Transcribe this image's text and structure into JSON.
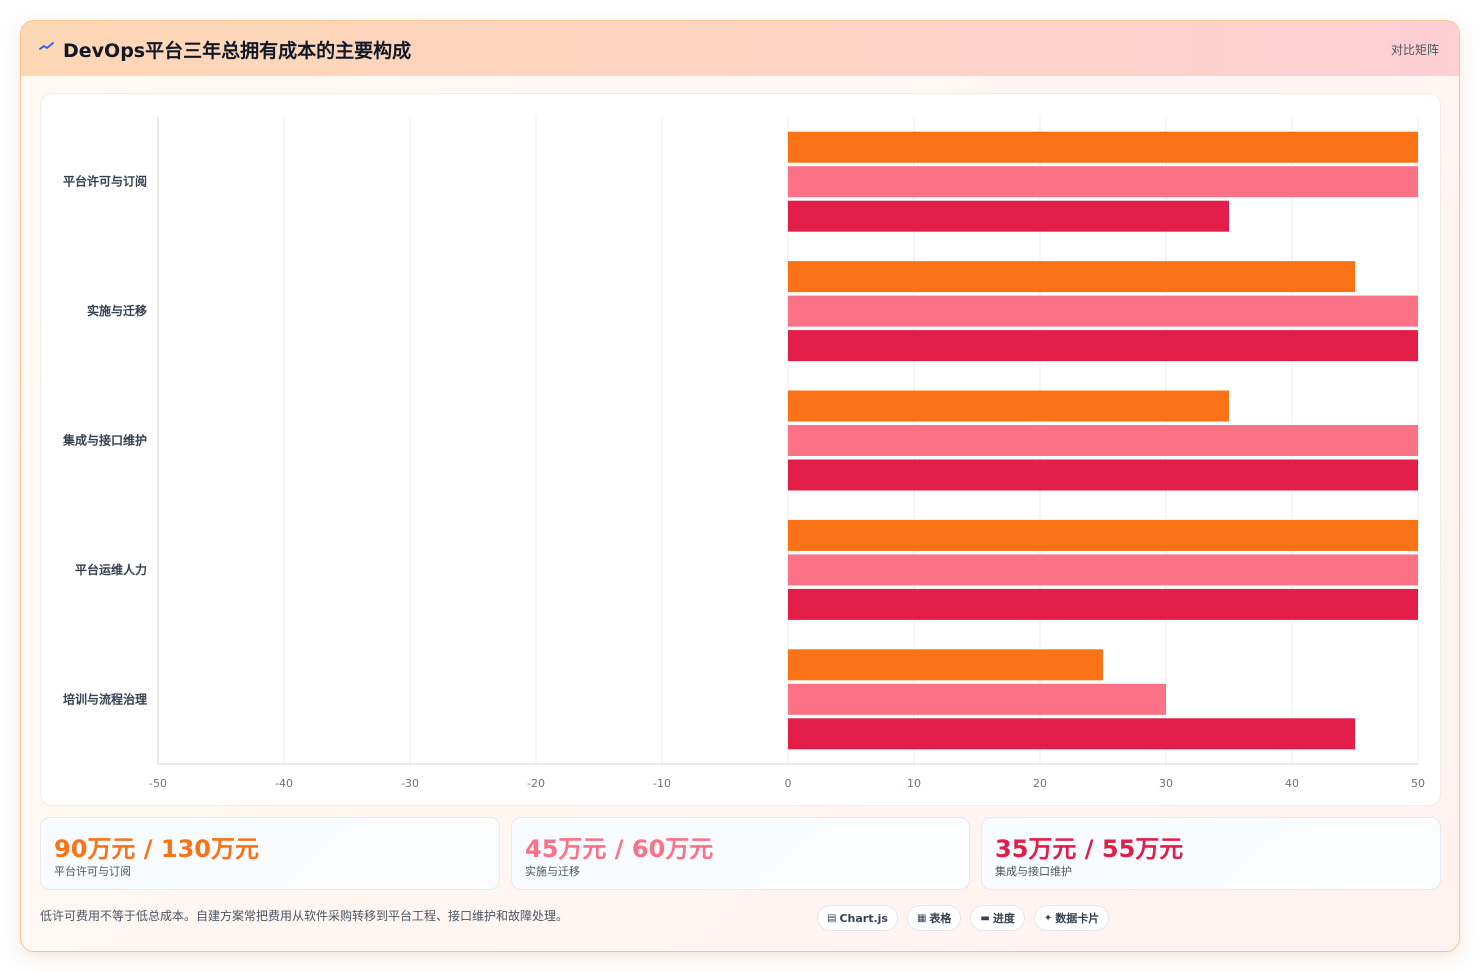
{
  "header": {
    "title": "DevOps平台三年总拥有成本的主要构成",
    "tag": "对比矩阵",
    "icon": "sparkline-icon"
  },
  "colors": {
    "orange": "#f97316",
    "pink": "#fb7185",
    "crimson": "#e11d48"
  },
  "chart_data": {
    "type": "bar",
    "orientation": "horizontal",
    "categories": [
      "平台许可与订阅",
      "实施与迁移",
      "集成与接口维护",
      "平台运维人力",
      "培训与流程治理"
    ],
    "series": [
      {
        "values": [
          50,
          45,
          35,
          50,
          25
        ],
        "color": "#f97316"
      },
      {
        "values": [
          50,
          50,
          50,
          50,
          30
        ],
        "color": "#fb7185"
      },
      {
        "values": [
          35,
          50,
          50,
          50,
          45
        ],
        "color": "#e11d48"
      }
    ],
    "xlim": [
      -50,
      50
    ],
    "xticks": [
      -50,
      -40,
      -30,
      -20,
      -10,
      0,
      10,
      20,
      30,
      40,
      50
    ],
    "grid": true,
    "legend": "none"
  },
  "stats": [
    {
      "value": "90万元 / 130万元",
      "label": "平台许可与订阅",
      "color": "#f97316"
    },
    {
      "value": "45万元 / 60万元",
      "label": "实施与迁移",
      "color": "#fb7185"
    },
    {
      "value": "35万元 / 55万元",
      "label": "集成与接口维护",
      "color": "#e11d48"
    }
  ],
  "footnote": "低许可费用不等于低总成本。自建方案常把费用从软件采购转移到平台工程、接口维护和故障处理。",
  "chips": [
    {
      "label": "Chart.js",
      "icon": "chart-icon"
    },
    {
      "label": "表格",
      "icon": "table-icon"
    },
    {
      "label": "进度",
      "icon": "progress-icon"
    },
    {
      "label": "数据卡片",
      "icon": "sparkle-icon"
    }
  ]
}
